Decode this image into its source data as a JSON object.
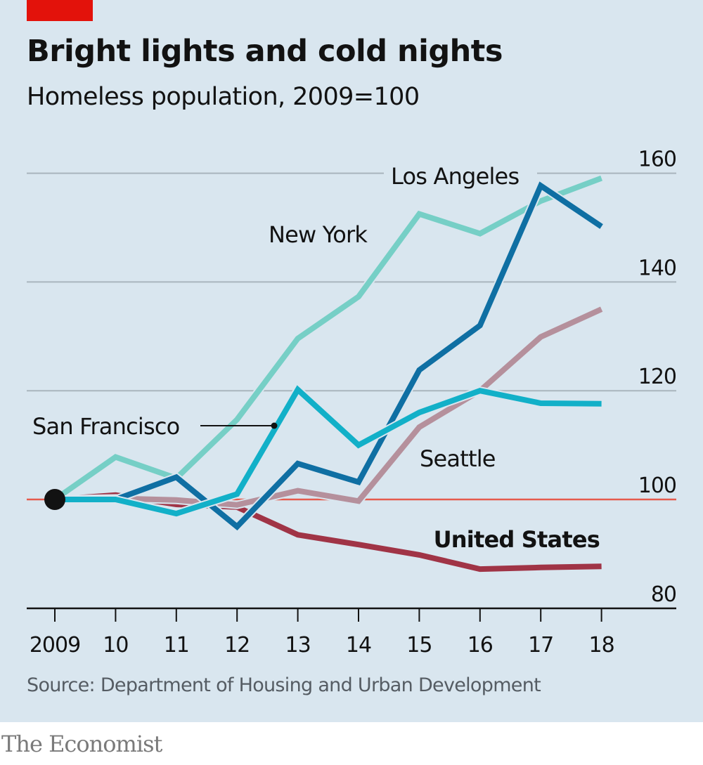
{
  "header": {
    "title": "Bright lights and cold nights",
    "subtitle": "Homeless population, 2009=100"
  },
  "footer": {
    "source": "Source: Department of Housing and Urban Development",
    "brand": "The Economist"
  },
  "colors": {
    "background": "#d9e6ef",
    "accent_tab": "#e3120b",
    "gridline": "#a9b5bd",
    "reference_line": "#e55b4d",
    "axis": "#121212"
  },
  "chart_data": {
    "type": "line",
    "title": "Bright lights and cold nights",
    "subtitle": "Homeless population, 2009=100",
    "xlabel": "",
    "ylabel": "",
    "x": [
      2009,
      2010,
      2011,
      2012,
      2013,
      2014,
      2015,
      2016,
      2017,
      2018
    ],
    "x_tick_labels": [
      "2009",
      "10",
      "11",
      "12",
      "13",
      "14",
      "15",
      "16",
      "17",
      "18"
    ],
    "ylim": [
      80,
      160
    ],
    "y_ticks": [
      80,
      100,
      120,
      140,
      160
    ],
    "y_tick_labels": [
      "80",
      "100",
      "120",
      "140",
      "160"
    ],
    "y_axis_side": "right",
    "grid": true,
    "reference_value": 100,
    "base_marker": {
      "x": 2009,
      "y": 100
    },
    "legend": "inline labels",
    "series": [
      {
        "name": "United States",
        "color": "#a03446",
        "label_bold": true,
        "values": [
          100,
          100.8,
          99.1,
          98.6,
          93.5,
          91.7,
          89.8,
          87.2,
          87.5,
          87.7
        ]
      },
      {
        "name": "Seattle",
        "color": "#b5909c",
        "label_bold": false,
        "values": [
          100,
          100.2,
          99.9,
          99.0,
          101.6,
          99.7,
          113.3,
          120.0,
          129.9,
          135.0
        ]
      },
      {
        "name": "New York",
        "color": "#76cfc6",
        "label_bold": false,
        "values": [
          100,
          107.8,
          103.9,
          114.7,
          129.6,
          137.3,
          152.5,
          148.9,
          154.9,
          159.1
        ]
      },
      {
        "name": "Los Angeles",
        "color": "#0f6fa3",
        "label_bold": false,
        "values": [
          100,
          100,
          104.1,
          95.0,
          106.6,
          103.2,
          123.8,
          132.0,
          157.7,
          150.2
        ]
      },
      {
        "name": "San Francisco",
        "color": "#12b0c8",
        "label_bold": false,
        "values": [
          100,
          100,
          97.4,
          101.0,
          120.2,
          110.0,
          116.0,
          120.0,
          117.7,
          117.6
        ]
      }
    ],
    "annotations": [
      {
        "text": "Los Angeles",
        "series": "Los Angeles"
      },
      {
        "text": "New York",
        "series": "New York"
      },
      {
        "text": "San Francisco",
        "series": "San Francisco",
        "leader_line": true
      },
      {
        "text": "Seattle",
        "series": "Seattle"
      },
      {
        "text": "United States",
        "series": "United States",
        "bold": true
      }
    ]
  }
}
